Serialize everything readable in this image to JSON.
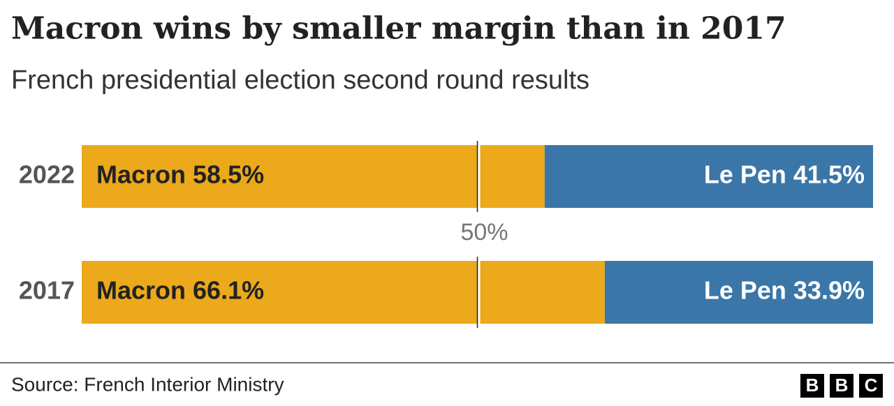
{
  "chart_data": {
    "type": "stacked-bar",
    "orientation": "horizontal",
    "title": "Macron wins by smaller margin than in 2017",
    "subtitle": "French presidential election second round results",
    "categories": [
      "2022",
      "2017"
    ],
    "xlim": [
      0,
      100
    ],
    "series": [
      {
        "name": "Macron",
        "color": "#eba91b",
        "values": [
          58.5,
          66.1
        ],
        "value_labels": [
          "Macron 58.5%",
          "Macron 66.1%"
        ]
      },
      {
        "name": "Le Pen",
        "color": "#3a76a8",
        "values": [
          41.5,
          33.9
        ],
        "value_labels": [
          "Le Pen 41.5%",
          "Le Pen 33.9%"
        ]
      }
    ],
    "reference_line": {
      "value": 50,
      "label": "50%"
    },
    "source": "Source: French Interior Ministry",
    "brand": [
      "B",
      "B",
      "C"
    ]
  }
}
